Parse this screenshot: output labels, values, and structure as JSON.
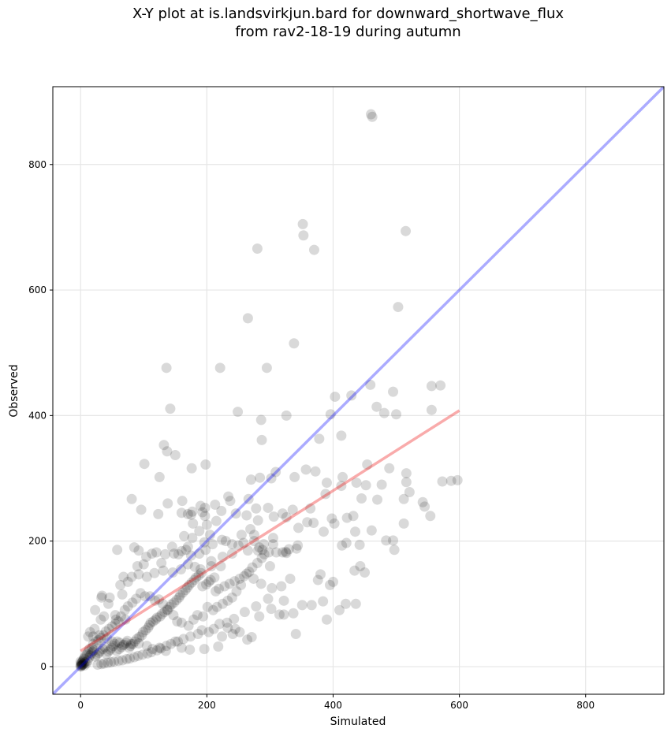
{
  "chart_data": {
    "type": "scatter",
    "title_lines": [
      "X-Y plot at is.landsvirkjun.bard for downward_shortwave_flux",
      "from rav2-18-19 during autumn"
    ],
    "xlabel": "Simulated",
    "ylabel": "Observed",
    "xlim": [
      -44,
      924
    ],
    "ylim": [
      -44,
      924
    ],
    "x_ticks": [
      0,
      200,
      400,
      600,
      800
    ],
    "y_ticks": [
      0,
      200,
      400,
      600,
      800
    ],
    "x_tick_labels": [
      "0",
      "200",
      "400",
      "600",
      "800"
    ],
    "y_tick_labels": [
      "0",
      "200",
      "400",
      "600",
      "800"
    ],
    "grid": true,
    "point_color": "#000000",
    "point_alpha": 0.15,
    "one_to_one_line": {
      "color": "#0000ff",
      "alpha": 0.33,
      "x": [
        -44,
        924
      ],
      "y": [
        -44,
        924
      ]
    },
    "fit_line": {
      "color": "#ee0000",
      "alpha": 0.33,
      "x": [
        0,
        600
      ],
      "y": [
        25,
        408
      ]
    },
    "points": [
      [
        460,
        880
      ],
      [
        462,
        876
      ],
      [
        352,
        705
      ],
      [
        515,
        694
      ],
      [
        353,
        687
      ],
      [
        280,
        666
      ],
      [
        370,
        664
      ],
      [
        503,
        573
      ],
      [
        265,
        555
      ],
      [
        338,
        515
      ],
      [
        136,
        476
      ],
      [
        221,
        476
      ],
      [
        295,
        476
      ],
      [
        459,
        449
      ],
      [
        570,
        448
      ],
      [
        556,
        447
      ],
      [
        142,
        411
      ],
      [
        469,
        414
      ],
      [
        249,
        406
      ],
      [
        481,
        404
      ],
      [
        500,
        402
      ],
      [
        396,
        402
      ],
      [
        326,
        400
      ],
      [
        286,
        393
      ],
      [
        429,
        432
      ],
      [
        403,
        430
      ],
      [
        556,
        409
      ],
      [
        495,
        438
      ],
      [
        413,
        368
      ],
      [
        287,
        361
      ],
      [
        378,
        363
      ],
      [
        101,
        323
      ],
      [
        198,
        322
      ],
      [
        454,
        322
      ],
      [
        489,
        316
      ],
      [
        176,
        316
      ],
      [
        516,
        308
      ],
      [
        339,
        302
      ],
      [
        150,
        337
      ],
      [
        137,
        343
      ],
      [
        132,
        353
      ],
      [
        125,
        302
      ],
      [
        284,
        301
      ],
      [
        270,
        298
      ],
      [
        516,
        294
      ],
      [
        390,
        293
      ],
      [
        477,
        290
      ],
      [
        452,
        289
      ],
      [
        413,
        288
      ],
      [
        437,
        293
      ],
      [
        372,
        311
      ],
      [
        357,
        314
      ],
      [
        415,
        302
      ],
      [
        587,
        296
      ],
      [
        597,
        297
      ],
      [
        573,
        295
      ],
      [
        521,
        278
      ],
      [
        470,
        266
      ],
      [
        81,
        267
      ],
      [
        445,
        268
      ],
      [
        388,
        275
      ],
      [
        309,
        310
      ],
      [
        302,
        300
      ],
      [
        234,
        271
      ],
      [
        512,
        267
      ],
      [
        237,
        264
      ],
      [
        266,
        267
      ],
      [
        297,
        253
      ],
      [
        278,
        252
      ],
      [
        336,
        250
      ],
      [
        223,
        248
      ],
      [
        161,
        264
      ],
      [
        246,
        244
      ],
      [
        288,
        186
      ],
      [
        320,
        244
      ],
      [
        197,
        253
      ],
      [
        213,
        258
      ],
      [
        190,
        256
      ],
      [
        138,
        260
      ],
      [
        123,
        243
      ],
      [
        96,
        250
      ],
      [
        542,
        262
      ],
      [
        545,
        255
      ],
      [
        554,
        240
      ],
      [
        432,
        240
      ],
      [
        398,
        236
      ],
      [
        422,
        237
      ],
      [
        345,
        221
      ],
      [
        369,
        229
      ],
      [
        402,
        228
      ],
      [
        326,
        238
      ],
      [
        306,
        239
      ],
      [
        263,
        241
      ],
      [
        240,
        195
      ],
      [
        224,
        202
      ],
      [
        205,
        210
      ],
      [
        512,
        228
      ],
      [
        461,
        217
      ],
      [
        385,
        215
      ],
      [
        435,
        215
      ],
      [
        442,
        194
      ],
      [
        484,
        201
      ],
      [
        495,
        201
      ],
      [
        497,
        186
      ],
      [
        305,
        205
      ],
      [
        305,
        195
      ],
      [
        275,
        210
      ],
      [
        255,
        210
      ],
      [
        281,
        185
      ],
      [
        265,
        185
      ],
      [
        330,
        187
      ],
      [
        342,
        188
      ],
      [
        310,
        182
      ],
      [
        320,
        182
      ],
      [
        326,
        181
      ],
      [
        325,
        183
      ],
      [
        193,
        246
      ],
      [
        197,
        240
      ],
      [
        170,
        243
      ],
      [
        175,
        242
      ],
      [
        160,
        245
      ],
      [
        177,
        247
      ],
      [
        178,
        228
      ],
      [
        164,
        208
      ],
      [
        177,
        205
      ],
      [
        200,
        226
      ],
      [
        215,
        232
      ],
      [
        230,
        200
      ],
      [
        250,
        193
      ],
      [
        258,
        197
      ],
      [
        275,
        200
      ],
      [
        283,
        190
      ],
      [
        290,
        195
      ],
      [
        298,
        182
      ],
      [
        300,
        160
      ],
      [
        269,
        219
      ],
      [
        281,
        233
      ],
      [
        170,
        191
      ],
      [
        160,
        184
      ],
      [
        145,
        191
      ],
      [
        148,
        180
      ],
      [
        134,
        179
      ],
      [
        128,
        165
      ],
      [
        120,
        182
      ],
      [
        113,
        180
      ],
      [
        104,
        175
      ],
      [
        100,
        163
      ],
      [
        90,
        160
      ],
      [
        58,
        186
      ],
      [
        85,
        190
      ],
      [
        92,
        185
      ],
      [
        188,
        216
      ],
      [
        196,
        198
      ],
      [
        209,
        195
      ],
      [
        198,
        186
      ],
      [
        188,
        180
      ],
      [
        175,
        177
      ],
      [
        167,
        186
      ],
      [
        155,
        179
      ],
      [
        159,
        155
      ],
      [
        170,
        163
      ],
      [
        190,
        155
      ],
      [
        207,
        160
      ],
      [
        225,
        175
      ],
      [
        240,
        180
      ],
      [
        222,
        160
      ],
      [
        207,
        168
      ],
      [
        181,
        159
      ],
      [
        146,
        150
      ],
      [
        131,
        153
      ],
      [
        117,
        149
      ],
      [
        105,
        143
      ],
      [
        92,
        147
      ],
      [
        81,
        143
      ],
      [
        68,
        143
      ],
      [
        75,
        135
      ],
      [
        63,
        130
      ],
      [
        66,
        115
      ],
      [
        34,
        113
      ],
      [
        46,
        110
      ],
      [
        33,
        110
      ],
      [
        44,
        100
      ],
      [
        23,
        90
      ],
      [
        55,
        82
      ],
      [
        37,
        80
      ],
      [
        56,
        75
      ],
      [
        32,
        75
      ],
      [
        71,
        75
      ],
      [
        22,
        60
      ],
      [
        15,
        55
      ],
      [
        12,
        48
      ],
      [
        20,
        48
      ],
      [
        30,
        50
      ],
      [
        42,
        45
      ],
      [
        50,
        40
      ],
      [
        58,
        40
      ],
      [
        62,
        38
      ],
      [
        69,
        35
      ],
      [
        80,
        36
      ],
      [
        92,
        37
      ],
      [
        105,
        33
      ],
      [
        114,
        28
      ],
      [
        125,
        30
      ],
      [
        135,
        25
      ],
      [
        150,
        40
      ],
      [
        160,
        30
      ],
      [
        173,
        27
      ],
      [
        196,
        28
      ],
      [
        218,
        32
      ],
      [
        224,
        48
      ],
      [
        241,
        52
      ],
      [
        252,
        55
      ],
      [
        245,
        60
      ],
      [
        233,
        62
      ],
      [
        264,
        43
      ],
      [
        271,
        47
      ],
      [
        283,
        80
      ],
      [
        302,
        92
      ],
      [
        315,
        83
      ],
      [
        322,
        83
      ],
      [
        337,
        85
      ],
      [
        351,
        98
      ],
      [
        366,
        98
      ],
      [
        384,
        104
      ],
      [
        390,
        75
      ],
      [
        410,
        90
      ],
      [
        420,
        100
      ],
      [
        436,
        100
      ],
      [
        434,
        153
      ],
      [
        443,
        160
      ],
      [
        450,
        150
      ],
      [
        341,
        52
      ],
      [
        322,
        105
      ],
      [
        303,
        125
      ],
      [
        286,
        132
      ],
      [
        274,
        140
      ],
      [
        263,
        148
      ],
      [
        254,
        130
      ],
      [
        247,
        120
      ],
      [
        240,
        110
      ],
      [
        233,
        105
      ],
      [
        225,
        100
      ],
      [
        216,
        95
      ],
      [
        210,
        90
      ],
      [
        201,
        95
      ],
      [
        194,
        80
      ],
      [
        185,
        82
      ],
      [
        179,
        75
      ],
      [
        171,
        65
      ],
      [
        160,
        70
      ],
      [
        153,
        72
      ],
      [
        147,
        82
      ],
      [
        138,
        90
      ],
      [
        130,
        100
      ],
      [
        124,
        107
      ],
      [
        118,
        105
      ],
      [
        110,
        112
      ],
      [
        102,
        112
      ],
      [
        95,
        117
      ],
      [
        88,
        108
      ],
      [
        82,
        102
      ],
      [
        75,
        96
      ],
      [
        70,
        90
      ],
      [
        64,
        80
      ],
      [
        60,
        72
      ],
      [
        55,
        68
      ],
      [
        50,
        64
      ],
      [
        45,
        60
      ],
      [
        40,
        56
      ],
      [
        36,
        50
      ],
      [
        32,
        46
      ],
      [
        28,
        42
      ],
      [
        25,
        40
      ],
      [
        20,
        36
      ],
      [
        18,
        30
      ],
      [
        14,
        28
      ],
      [
        12,
        24
      ],
      [
        10,
        20
      ],
      [
        8,
        18
      ],
      [
        6,
        14
      ],
      [
        5,
        12
      ],
      [
        4,
        10
      ],
      [
        3,
        8
      ],
      [
        2,
        6
      ],
      [
        1,
        4
      ],
      [
        0,
        2
      ],
      [
        0,
        0
      ],
      [
        1,
        1
      ],
      [
        2,
        2
      ],
      [
        3,
        3
      ],
      [
        4,
        4
      ],
      [
        5,
        5
      ],
      [
        2,
        3
      ],
      [
        1,
        6
      ],
      [
        0,
        8
      ],
      [
        6,
        2
      ],
      [
        7,
        7
      ],
      [
        9,
        5
      ],
      [
        11,
        9
      ],
      [
        13,
        14
      ],
      [
        15,
        18
      ],
      [
        17,
        21
      ],
      [
        19,
        24
      ],
      [
        21,
        26
      ],
      [
        23,
        16
      ],
      [
        26,
        19
      ],
      [
        29,
        22
      ],
      [
        31,
        25
      ],
      [
        35,
        28
      ],
      [
        38,
        31
      ],
      [
        41,
        20
      ],
      [
        44,
        24
      ],
      [
        47,
        27
      ],
      [
        49,
        30
      ],
      [
        52,
        33
      ],
      [
        54,
        36
      ],
      [
        57,
        25
      ],
      [
        61,
        28
      ],
      [
        65,
        31
      ],
      [
        67,
        34
      ],
      [
        72,
        38
      ],
      [
        74,
        41
      ],
      [
        77,
        30
      ],
      [
        79,
        33
      ],
      [
        83,
        36
      ],
      [
        86,
        40
      ],
      [
        89,
        44
      ],
      [
        93,
        47
      ],
      [
        97,
        50
      ],
      [
        99,
        55
      ],
      [
        103,
        58
      ],
      [
        107,
        62
      ],
      [
        109,
        66
      ],
      [
        111,
        70
      ],
      [
        115,
        72
      ],
      [
        119,
        75
      ],
      [
        121,
        78
      ],
      [
        126,
        80
      ],
      [
        129,
        84
      ],
      [
        133,
        87
      ],
      [
        137,
        91
      ],
      [
        141,
        95
      ],
      [
        144,
        99
      ],
      [
        148,
        102
      ],
      [
        152,
        106
      ],
      [
        156,
        110
      ],
      [
        158,
        114
      ],
      [
        162,
        118
      ],
      [
        166,
        122
      ],
      [
        169,
        126
      ],
      [
        172,
        130
      ],
      [
        176,
        134
      ],
      [
        180,
        138
      ],
      [
        183,
        142
      ],
      [
        187,
        145
      ],
      [
        191,
        149
      ],
      [
        193,
        128
      ],
      [
        199,
        131
      ],
      [
        203,
        135
      ],
      [
        206,
        138
      ],
      [
        212,
        142
      ],
      [
        214,
        120
      ],
      [
        219,
        124
      ],
      [
        228,
        128
      ],
      [
        236,
        132
      ],
      [
        244,
        136
      ],
      [
        252,
        140
      ],
      [
        259,
        144
      ],
      [
        267,
        151
      ],
      [
        272,
        158
      ],
      [
        280,
        165
      ],
      [
        287,
        173
      ],
      [
        291,
        179
      ],
      [
        376,
        138
      ],
      [
        395,
        130
      ],
      [
        400,
        135
      ],
      [
        380,
        147
      ],
      [
        414,
        193
      ],
      [
        421,
        197
      ],
      [
        359,
        230
      ],
      [
        364,
        252
      ],
      [
        344,
        193
      ],
      [
        332,
        140
      ],
      [
        318,
        128
      ],
      [
        297,
        108
      ],
      [
        278,
        96
      ],
      [
        260,
        87
      ],
      [
        243,
        76
      ],
      [
        232,
        70
      ],
      [
        220,
        68
      ],
      [
        211,
        60
      ],
      [
        203,
        55
      ],
      [
        192,
        58
      ],
      [
        186,
        52
      ],
      [
        174,
        48
      ],
      [
        163,
        44
      ],
      [
        154,
        40
      ],
      [
        143,
        36
      ],
      [
        136,
        33
      ],
      [
        127,
        29
      ],
      [
        121,
        26
      ],
      [
        112,
        23
      ],
      [
        106,
        21
      ],
      [
        98,
        19
      ],
      [
        91,
        17
      ],
      [
        85,
        15
      ],
      [
        78,
        13
      ],
      [
        73,
        12
      ],
      [
        66,
        10
      ],
      [
        60,
        9
      ],
      [
        53,
        8
      ],
      [
        48,
        7
      ],
      [
        43,
        6
      ],
      [
        37,
        5
      ],
      [
        33,
        4
      ],
      [
        27,
        3
      ]
    ]
  }
}
